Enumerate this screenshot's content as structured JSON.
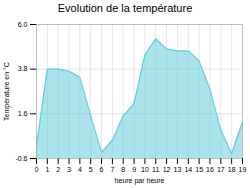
{
  "chart_data": {
    "type": "area",
    "title": "Evolution de la température",
    "x_label": "heure par heure",
    "y_label": "Température en °C",
    "x": [
      0,
      1,
      2,
      3,
      4,
      5,
      6,
      7,
      8,
      9,
      10,
      11,
      12,
      13,
      14,
      15,
      16,
      17,
      18,
      19
    ],
    "values": [
      0.0,
      3.8,
      3.8,
      3.7,
      3.4,
      1.5,
      -0.3,
      0.3,
      1.5,
      2.1,
      4.5,
      5.3,
      4.8,
      4.7,
      4.7,
      4.2,
      2.8,
      0.8,
      -0.35,
      1.2
    ],
    "color": "#66ccdd",
    "xlim": [
      0,
      19
    ],
    "xticks": [
      0,
      1,
      2,
      3,
      4,
      5,
      6,
      7,
      8,
      9,
      10,
      11,
      12,
      13,
      14,
      15,
      16,
      17,
      18,
      19
    ],
    "ylim": [
      -0.6,
      6.0
    ],
    "yticks": [
      -0.6,
      1.6,
      3.8,
      {
        "value": 6.0,
        "label": "6.0"
      }
    ],
    "grid": true
  }
}
